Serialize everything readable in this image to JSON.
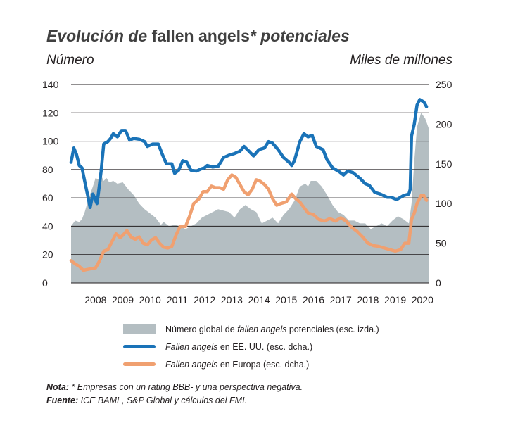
{
  "title": {
    "italic_part1": "Evolución de ",
    "plain_part": "fallen angels",
    "italic_part2": "* potenciales"
  },
  "unit_left": "Número",
  "unit_right": "Miles de millones",
  "legend": [
    {
      "pre": "Número global de ",
      "italic": "fallen angels",
      "post": " potenciales (esc. izda.)"
    },
    {
      "pre": "",
      "italic": "Fallen angels",
      "post": " en EE. UU. (esc. dcha.)"
    },
    {
      "pre": "",
      "italic": "Fallen angels",
      "post": " en Europa (esc. dcha.)"
    }
  ],
  "notes": {
    "note_label": "Nota:",
    "note_text": " * Empresas con un rating BBB- y una perspectiva  negativa.",
    "source_label": "Fuente:",
    "source_text": " ICE BAML, S&P Global y cálculos del FMI."
  },
  "colors": {
    "area": "#b4bec2",
    "us": "#1a73b8",
    "europe": "#f0a070",
    "grid": "#231f20"
  },
  "chart_data": {
    "type": "line",
    "x_years": [
      "2008",
      "2009",
      "2010",
      "2011",
      "2012",
      "2013",
      "2014",
      "2015",
      "2016",
      "2017",
      "2018",
      "2019",
      "2020"
    ],
    "x_range": [
      2007.6,
      2020.75
    ],
    "left_axis": {
      "range": [
        0,
        140
      ],
      "ticks": [
        "0",
        "20",
        "40",
        "60",
        "80",
        "100",
        "120",
        "140"
      ]
    },
    "right_axis": {
      "range": [
        0,
        250
      ],
      "ticks": [
        "0",
        "50",
        "100",
        "150",
        "200",
        "250"
      ]
    },
    "grid": true,
    "series": [
      {
        "name_ref": "legend.0",
        "axis": "left",
        "kind": "area",
        "points": [
          [
            2007.6,
            40
          ],
          [
            2007.75,
            44
          ],
          [
            2007.9,
            43
          ],
          [
            2008.0,
            45
          ],
          [
            2008.1,
            50
          ],
          [
            2008.25,
            60
          ],
          [
            2008.4,
            68
          ],
          [
            2008.5,
            74
          ],
          [
            2008.6,
            73
          ],
          [
            2008.7,
            76
          ],
          [
            2008.8,
            72
          ],
          [
            2008.9,
            74
          ],
          [
            2009.0,
            71
          ],
          [
            2009.15,
            72
          ],
          [
            2009.3,
            70
          ],
          [
            2009.5,
            71
          ],
          [
            2009.7,
            66
          ],
          [
            2009.9,
            62
          ],
          [
            2010.1,
            56
          ],
          [
            2010.3,
            52
          ],
          [
            2010.5,
            49
          ],
          [
            2010.7,
            46
          ],
          [
            2010.9,
            41
          ],
          [
            2011.0,
            43
          ],
          [
            2011.2,
            40
          ],
          [
            2011.4,
            41
          ],
          [
            2011.6,
            40
          ],
          [
            2011.8,
            38
          ],
          [
            2012.0,
            40
          ],
          [
            2012.2,
            42
          ],
          [
            2012.4,
            46
          ],
          [
            2012.6,
            48
          ],
          [
            2012.8,
            50
          ],
          [
            2013.0,
            52
          ],
          [
            2013.2,
            51
          ],
          [
            2013.4,
            50
          ],
          [
            2013.6,
            46
          ],
          [
            2013.8,
            52
          ],
          [
            2014.0,
            55
          ],
          [
            2014.2,
            52
          ],
          [
            2014.4,
            50
          ],
          [
            2014.6,
            42
          ],
          [
            2014.8,
            44
          ],
          [
            2015.0,
            46
          ],
          [
            2015.2,
            42
          ],
          [
            2015.4,
            48
          ],
          [
            2015.6,
            52
          ],
          [
            2015.8,
            58
          ],
          [
            2016.0,
            68
          ],
          [
            2016.2,
            70
          ],
          [
            2016.3,
            68
          ],
          [
            2016.4,
            72
          ],
          [
            2016.6,
            72
          ],
          [
            2016.8,
            68
          ],
          [
            2017.0,
            62
          ],
          [
            2017.2,
            55
          ],
          [
            2017.4,
            50
          ],
          [
            2017.6,
            48
          ],
          [
            2017.8,
            44
          ],
          [
            2018.0,
            44
          ],
          [
            2018.2,
            42
          ],
          [
            2018.4,
            42
          ],
          [
            2018.6,
            38
          ],
          [
            2018.8,
            40
          ],
          [
            2019.0,
            42
          ],
          [
            2019.2,
            40
          ],
          [
            2019.4,
            44
          ],
          [
            2019.6,
            47
          ],
          [
            2019.8,
            45
          ],
          [
            2020.0,
            42
          ],
          [
            2020.1,
            56
          ],
          [
            2020.2,
            86
          ],
          [
            2020.3,
            110
          ],
          [
            2020.45,
            120
          ],
          [
            2020.6,
            116
          ],
          [
            2020.75,
            108
          ]
        ]
      },
      {
        "name_ref": "legend.1",
        "axis": "right",
        "kind": "line",
        "points": [
          [
            2007.6,
            152
          ],
          [
            2007.7,
            170
          ],
          [
            2007.8,
            162
          ],
          [
            2007.9,
            148
          ],
          [
            2008.0,
            145
          ],
          [
            2008.1,
            128
          ],
          [
            2008.2,
            112
          ],
          [
            2008.3,
            95
          ],
          [
            2008.4,
            112
          ],
          [
            2008.55,
            100
          ],
          [
            2008.6,
            112
          ],
          [
            2008.7,
            140
          ],
          [
            2008.8,
            175
          ],
          [
            2008.95,
            178
          ],
          [
            2009.05,
            182
          ],
          [
            2009.15,
            188
          ],
          [
            2009.3,
            184
          ],
          [
            2009.45,
            192
          ],
          [
            2009.6,
            192
          ],
          [
            2009.75,
            180
          ],
          [
            2009.9,
            182
          ],
          [
            2010.1,
            181
          ],
          [
            2010.3,
            178
          ],
          [
            2010.4,
            172
          ],
          [
            2010.6,
            175
          ],
          [
            2010.8,
            175
          ],
          [
            2010.95,
            162
          ],
          [
            2011.1,
            150
          ],
          [
            2011.3,
            150
          ],
          [
            2011.4,
            138
          ],
          [
            2011.55,
            142
          ],
          [
            2011.7,
            154
          ],
          [
            2011.85,
            152
          ],
          [
            2012.0,
            142
          ],
          [
            2012.2,
            141
          ],
          [
            2012.4,
            144
          ],
          [
            2012.5,
            145
          ],
          [
            2012.6,
            148
          ],
          [
            2012.8,
            146
          ],
          [
            2013.0,
            147
          ],
          [
            2013.2,
            158
          ],
          [
            2013.4,
            161
          ],
          [
            2013.6,
            163
          ],
          [
            2013.8,
            166
          ],
          [
            2013.95,
            172
          ],
          [
            2014.1,
            167
          ],
          [
            2014.3,
            160
          ],
          [
            2014.5,
            168
          ],
          [
            2014.7,
            170
          ],
          [
            2014.85,
            178
          ],
          [
            2015.0,
            176
          ],
          [
            2015.2,
            168
          ],
          [
            2015.4,
            158
          ],
          [
            2015.6,
            152
          ],
          [
            2015.7,
            148
          ],
          [
            2015.8,
            154
          ],
          [
            2016.0,
            178
          ],
          [
            2016.15,
            188
          ],
          [
            2016.3,
            184
          ],
          [
            2016.45,
            186
          ],
          [
            2016.6,
            172
          ],
          [
            2016.85,
            168
          ],
          [
            2017.0,
            155
          ],
          [
            2017.2,
            145
          ],
          [
            2017.45,
            140
          ],
          [
            2017.6,
            136
          ],
          [
            2017.75,
            141
          ],
          [
            2017.95,
            139
          ],
          [
            2018.2,
            132
          ],
          [
            2018.4,
            125
          ],
          [
            2018.55,
            123
          ],
          [
            2018.75,
            114
          ],
          [
            2018.95,
            112
          ],
          [
            2019.2,
            108
          ],
          [
            2019.35,
            108
          ],
          [
            2019.55,
            105
          ],
          [
            2019.8,
            110
          ],
          [
            2020.0,
            112
          ],
          [
            2020.05,
            118
          ],
          [
            2020.1,
            185
          ],
          [
            2020.2,
            200
          ],
          [
            2020.3,
            224
          ],
          [
            2020.4,
            231
          ],
          [
            2020.55,
            228
          ],
          [
            2020.65,
            222
          ]
        ]
      },
      {
        "name_ref": "legend.2",
        "axis": "right",
        "kind": "line",
        "points": [
          [
            2007.6,
            28
          ],
          [
            2007.75,
            24
          ],
          [
            2007.9,
            21
          ],
          [
            2008.05,
            16
          ],
          [
            2008.2,
            17
          ],
          [
            2008.35,
            18
          ],
          [
            2008.5,
            19
          ],
          [
            2008.65,
            28
          ],
          [
            2008.8,
            40
          ],
          [
            2008.95,
            42
          ],
          [
            2009.1,
            52
          ],
          [
            2009.25,
            62
          ],
          [
            2009.4,
            57
          ],
          [
            2009.5,
            60
          ],
          [
            2009.65,
            66
          ],
          [
            2009.8,
            58
          ],
          [
            2009.95,
            55
          ],
          [
            2010.1,
            58
          ],
          [
            2010.25,
            50
          ],
          [
            2010.4,
            48
          ],
          [
            2010.55,
            54
          ],
          [
            2010.7,
            57
          ],
          [
            2010.85,
            50
          ],
          [
            2011.0,
            45
          ],
          [
            2011.15,
            44
          ],
          [
            2011.3,
            46
          ],
          [
            2011.45,
            60
          ],
          [
            2011.6,
            71
          ],
          [
            2011.8,
            71
          ],
          [
            2011.95,
            84
          ],
          [
            2012.1,
            100
          ],
          [
            2012.3,
            106
          ],
          [
            2012.45,
            115
          ],
          [
            2012.6,
            115
          ],
          [
            2012.75,
            122
          ],
          [
            2012.9,
            120
          ],
          [
            2013.05,
            120
          ],
          [
            2013.2,
            118
          ],
          [
            2013.35,
            130
          ],
          [
            2013.5,
            136
          ],
          [
            2013.65,
            133
          ],
          [
            2013.8,
            124
          ],
          [
            2013.95,
            115
          ],
          [
            2014.1,
            111
          ],
          [
            2014.25,
            118
          ],
          [
            2014.4,
            130
          ],
          [
            2014.55,
            128
          ],
          [
            2014.7,
            124
          ],
          [
            2014.85,
            118
          ],
          [
            2015.0,
            106
          ],
          [
            2015.15,
            98
          ],
          [
            2015.3,
            100
          ],
          [
            2015.5,
            102
          ],
          [
            2015.7,
            112
          ],
          [
            2015.85,
            106
          ],
          [
            2016.0,
            102
          ],
          [
            2016.15,
            95
          ],
          [
            2016.3,
            88
          ],
          [
            2016.5,
            86
          ],
          [
            2016.7,
            80
          ],
          [
            2016.9,
            78
          ],
          [
            2017.1,
            81
          ],
          [
            2017.3,
            78
          ],
          [
            2017.5,
            82
          ],
          [
            2017.7,
            78
          ],
          [
            2017.9,
            70
          ],
          [
            2018.1,
            65
          ],
          [
            2018.3,
            58
          ],
          [
            2018.5,
            50
          ],
          [
            2018.7,
            47
          ],
          [
            2018.9,
            46
          ],
          [
            2019.1,
            44
          ],
          [
            2019.3,
            42
          ],
          [
            2019.5,
            40
          ],
          [
            2019.7,
            42
          ],
          [
            2019.85,
            50
          ],
          [
            2020.0,
            50
          ],
          [
            2020.1,
            80
          ],
          [
            2020.2,
            88
          ],
          [
            2020.3,
            100
          ],
          [
            2020.45,
            110
          ],
          [
            2020.55,
            110
          ],
          [
            2020.65,
            104
          ]
        ]
      }
    ]
  }
}
